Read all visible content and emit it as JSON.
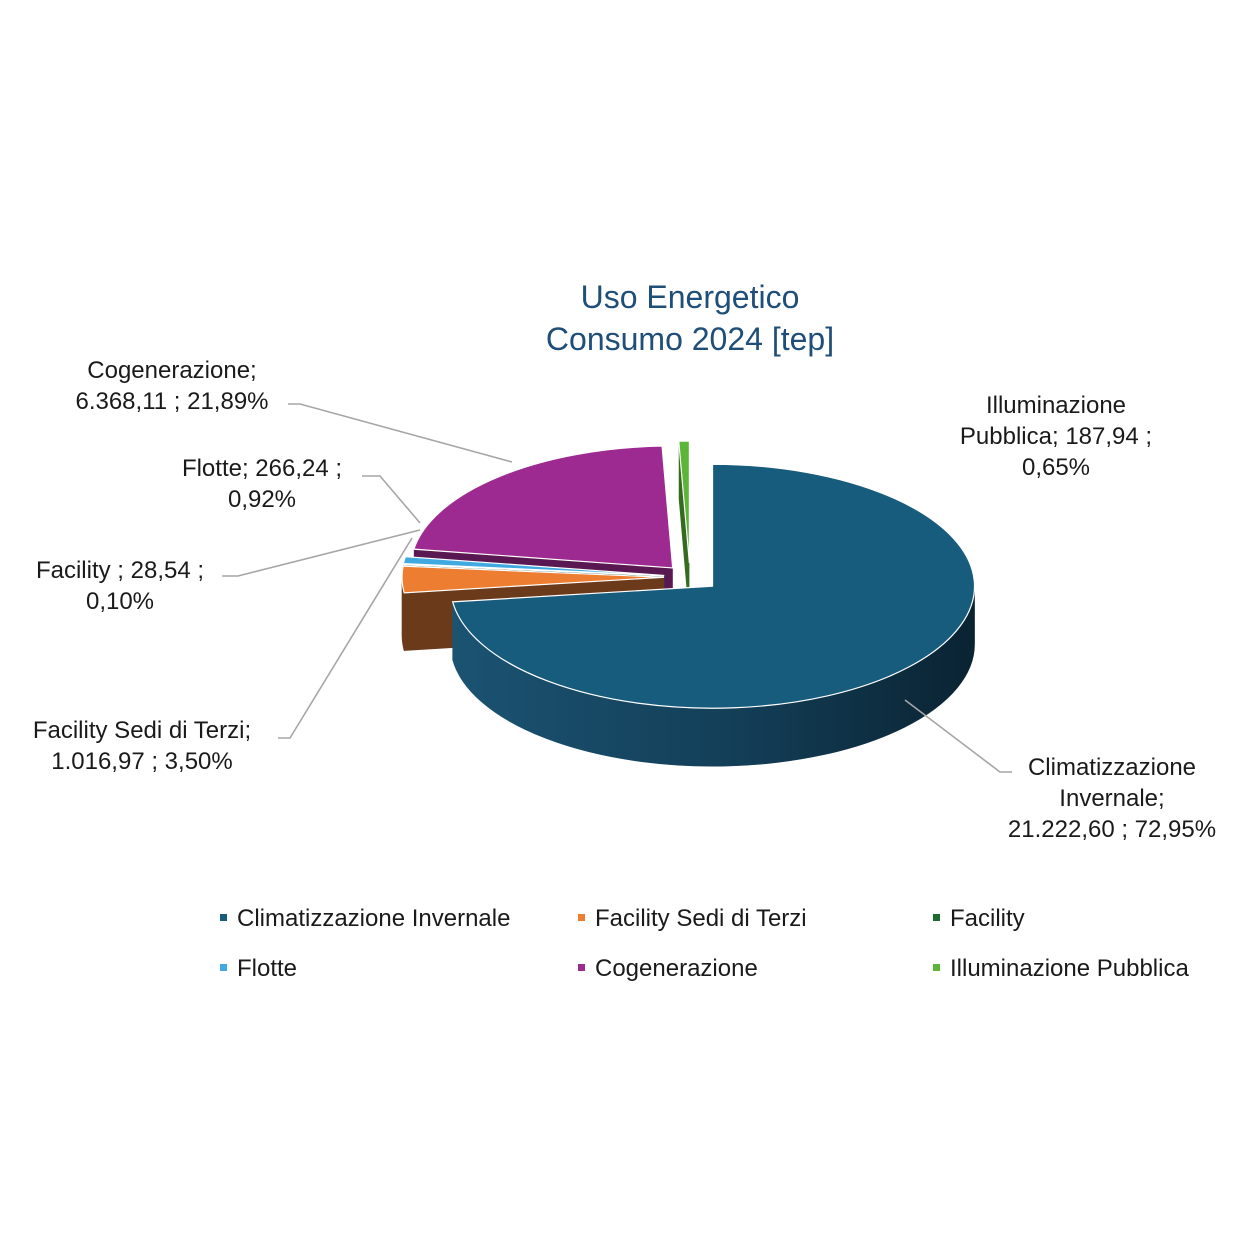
{
  "chart_data": {
    "type": "pie",
    "style": "3d-exploded",
    "title": [
      "Uso Energetico",
      "Consumo 2024 [tep]"
    ],
    "legend_position": "bottom",
    "slices": [
      {
        "name": "Climatizzazione Invernale",
        "value": 21222.6,
        "value_label": "21.222,60",
        "percent": 72.95,
        "percent_label": "72,95%",
        "color": "#175b7d",
        "side_color": "#103d55",
        "label_lines": [
          "Climatizzazione",
          "Invernale;",
          "21.222,60 ; 72,95%"
        ]
      },
      {
        "name": "Facility Sedi di Terzi",
        "value": 1016.97,
        "value_label": "1.016,97",
        "percent": 3.5,
        "percent_label": "3,50%",
        "color": "#ed7d31",
        "side_color": "#6b3a1b",
        "label_lines": [
          "Facility Sedi di Terzi;",
          "1.016,97 ; 3,50%"
        ]
      },
      {
        "name": "Facility",
        "value": 28.54,
        "value_label": "28,54",
        "percent": 0.1,
        "percent_label": "0,10%",
        "color": "#1e6b30",
        "side_color": "#123f1d",
        "label_lines": [
          "Facility ;  28,54 ;",
          "0,10%"
        ]
      },
      {
        "name": "Flotte",
        "value": 266.24,
        "value_label": "266,24",
        "percent": 0.92,
        "percent_label": "0,92%",
        "color": "#3fa9e0",
        "side_color": "#26658a",
        "label_lines": [
          "Flotte;  266,24 ;",
          "0,92%"
        ]
      },
      {
        "name": "Cogenerazione",
        "value": 6368.11,
        "value_label": "6.368,11",
        "percent": 21.89,
        "percent_label": "21,89%",
        "color": "#9c2a90",
        "side_color": "#5a1853",
        "label_lines": [
          "Cogenerazione;",
          "6.368,11 ; 21,89%"
        ]
      },
      {
        "name": "Illuminazione Pubblica",
        "value": 187.94,
        "value_label": "187,94",
        "percent": 0.65,
        "percent_label": "0,65%",
        "color": "#5bb536",
        "side_color": "#356b1f",
        "label_lines": [
          "Illuminazione",
          "Pubblica;  187,94 ;",
          "0,65%"
        ]
      }
    ]
  }
}
